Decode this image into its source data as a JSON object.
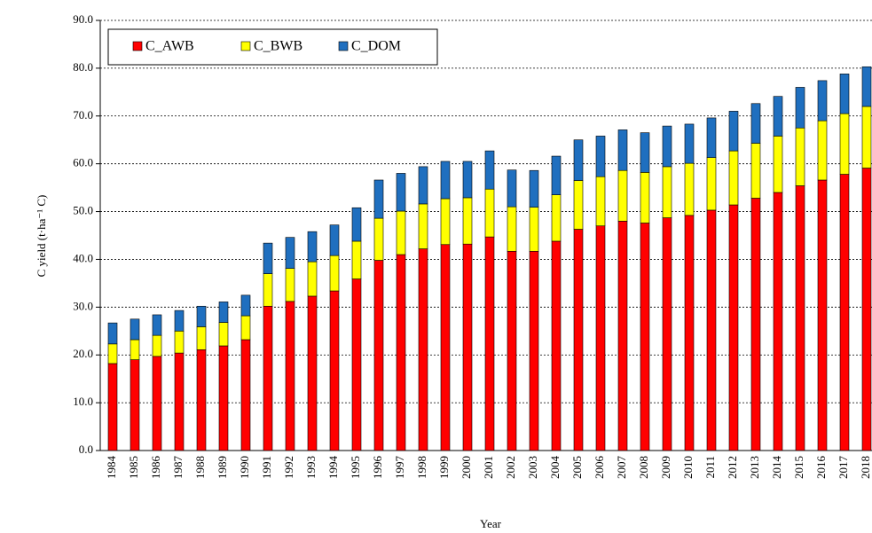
{
  "chart_data": {
    "type": "stacked_bar",
    "x_label": "Year",
    "y_label": "C yield (t·ha⁻¹ C)",
    "categories": [
      "1984",
      "1985",
      "1986",
      "1987",
      "1988",
      "1989",
      "1990",
      "1991",
      "1992",
      "1993",
      "1994",
      "1995",
      "1996",
      "1997",
      "1998",
      "1999",
      "2000",
      "2001",
      "2002",
      "2003",
      "2004",
      "2005",
      "2006",
      "2007",
      "2008",
      "2009",
      "2010",
      "2011",
      "2012",
      "2013",
      "2014",
      "2015",
      "2016",
      "2017",
      "2018"
    ],
    "series": [
      {
        "name": "C_AWB",
        "color": "#ff0000",
        "values": [
          18.2,
          19.0,
          19.7,
          20.4,
          21.1,
          21.9,
          23.2,
          30.2,
          31.2,
          32.3,
          33.4,
          35.9,
          39.8,
          41.0,
          42.2,
          43.1,
          43.2,
          44.7,
          41.7,
          41.7,
          43.8,
          46.3,
          47.0,
          48.0,
          47.6,
          48.7,
          49.2,
          50.3,
          51.4,
          52.8,
          54.0,
          55.4,
          56.6,
          57.8,
          59.1
        ]
      },
      {
        "name": "C_BWB",
        "color": "#ffff00",
        "values": [
          4.1,
          4.2,
          4.4,
          4.6,
          4.8,
          4.9,
          5.0,
          6.8,
          6.9,
          7.2,
          7.4,
          7.9,
          8.8,
          9.1,
          9.4,
          9.6,
          9.7,
          10.0,
          9.3,
          9.2,
          9.7,
          10.2,
          10.3,
          10.6,
          10.6,
          10.7,
          10.9,
          11.0,
          11.3,
          11.5,
          11.8,
          12.1,
          12.4,
          12.7,
          12.9
        ]
      },
      {
        "name": "C_DOM",
        "color": "#1f6fbf",
        "values": [
          4.4,
          4.3,
          4.3,
          4.3,
          4.3,
          4.3,
          4.3,
          6.4,
          6.5,
          6.3,
          6.4,
          7.0,
          8.0,
          7.9,
          7.8,
          7.8,
          7.6,
          8.0,
          7.7,
          7.7,
          8.1,
          8.5,
          8.5,
          8.5,
          8.3,
          8.5,
          8.2,
          8.3,
          8.3,
          8.3,
          8.3,
          8.5,
          8.4,
          8.3,
          8.3
        ]
      }
    ],
    "ylim": [
      0,
      90
    ],
    "yticks": [
      {
        "value": 0,
        "label": "0.0"
      },
      {
        "value": 10,
        "label": "10.0"
      },
      {
        "value": 20,
        "label": "20.0"
      },
      {
        "value": 30,
        "label": "30.0"
      },
      {
        "value": 40,
        "label": "40.0"
      },
      {
        "value": 50,
        "label": "50.0"
      },
      {
        "value": 60,
        "label": "60.0"
      },
      {
        "value": 70,
        "label": "70.0"
      },
      {
        "value": 80,
        "label": "80.0"
      },
      {
        "value": 90,
        "label": "90.0"
      }
    ],
    "grid": true,
    "legend": "top-left"
  }
}
